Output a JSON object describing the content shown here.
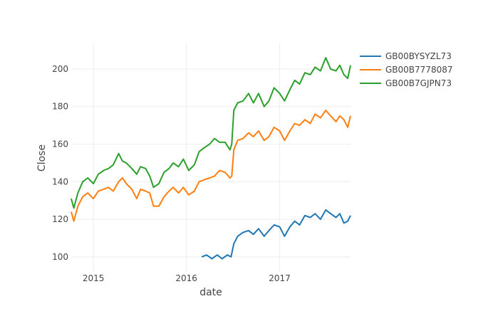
{
  "chart_data": {
    "type": "line",
    "title": "",
    "xlabel": "date",
    "ylabel": "Close",
    "xlim": [
      "2014-10-06",
      "2017-10-06"
    ],
    "ylim": [
      92,
      214
    ],
    "x_ticks": [
      {
        "label": "2015",
        "date": "2015-01-01"
      },
      {
        "label": "2016",
        "date": "2016-01-01"
      },
      {
        "label": "2017",
        "date": "2017-01-01"
      }
    ],
    "y_ticks": [
      100,
      120,
      140,
      160,
      180,
      200
    ],
    "grid": true,
    "legend_position": "top-right",
    "series": [
      {
        "name": "GB00BYSYZL73",
        "color": "#1f77b4",
        "points": [
          [
            "2016-03-01",
            100
          ],
          [
            "2016-03-20",
            101
          ],
          [
            "2016-04-10",
            99
          ],
          [
            "2016-05-01",
            101
          ],
          [
            "2016-05-20",
            99
          ],
          [
            "2016-06-10",
            101
          ],
          [
            "2016-06-24",
            100
          ],
          [
            "2016-07-05",
            107
          ],
          [
            "2016-07-20",
            111
          ],
          [
            "2016-08-10",
            113
          ],
          [
            "2016-09-01",
            114
          ],
          [
            "2016-09-20",
            112
          ],
          [
            "2016-10-10",
            115
          ],
          [
            "2016-11-01",
            111
          ],
          [
            "2016-11-20",
            114
          ],
          [
            "2016-12-10",
            117
          ],
          [
            "2017-01-01",
            116
          ],
          [
            "2017-01-20",
            111
          ],
          [
            "2017-02-10",
            116
          ],
          [
            "2017-03-01",
            119
          ],
          [
            "2017-03-20",
            117
          ],
          [
            "2017-04-10",
            122
          ],
          [
            "2017-05-01",
            121
          ],
          [
            "2017-05-20",
            123
          ],
          [
            "2017-06-10",
            120
          ],
          [
            "2017-07-01",
            125
          ],
          [
            "2017-07-20",
            123
          ],
          [
            "2017-08-10",
            121
          ],
          [
            "2017-08-25",
            123
          ],
          [
            "2017-09-10",
            118
          ],
          [
            "2017-09-25",
            119
          ],
          [
            "2017-10-06",
            122
          ]
        ]
      },
      {
        "name": "GB00B7778087",
        "color": "#ff7f0e",
        "points": [
          [
            "2014-10-06",
            124
          ],
          [
            "2014-10-16",
            119
          ],
          [
            "2014-11-01",
            127
          ],
          [
            "2014-11-20",
            132
          ],
          [
            "2014-12-10",
            134
          ],
          [
            "2015-01-01",
            131
          ],
          [
            "2015-01-20",
            135
          ],
          [
            "2015-02-10",
            136
          ],
          [
            "2015-03-01",
            137
          ],
          [
            "2015-03-20",
            135
          ],
          [
            "2015-04-10",
            140
          ],
          [
            "2015-04-25",
            142
          ],
          [
            "2015-05-10",
            139
          ],
          [
            "2015-06-01",
            136
          ],
          [
            "2015-06-20",
            131
          ],
          [
            "2015-07-05",
            136
          ],
          [
            "2015-07-25",
            135
          ],
          [
            "2015-08-10",
            134
          ],
          [
            "2015-08-25",
            127
          ],
          [
            "2015-09-15",
            127
          ],
          [
            "2015-10-05",
            132
          ],
          [
            "2015-10-25",
            135
          ],
          [
            "2015-11-10",
            137
          ],
          [
            "2015-12-01",
            134
          ],
          [
            "2015-12-20",
            137
          ],
          [
            "2016-01-10",
            133
          ],
          [
            "2016-02-01",
            135
          ],
          [
            "2016-02-20",
            140
          ],
          [
            "2016-03-10",
            141
          ],
          [
            "2016-04-01",
            142
          ],
          [
            "2016-04-20",
            143
          ],
          [
            "2016-05-10",
            146
          ],
          [
            "2016-06-01",
            145
          ],
          [
            "2016-06-20",
            142
          ],
          [
            "2016-06-27",
            143
          ],
          [
            "2016-07-05",
            157
          ],
          [
            "2016-07-20",
            162
          ],
          [
            "2016-08-10",
            163
          ],
          [
            "2016-09-01",
            166
          ],
          [
            "2016-09-20",
            164
          ],
          [
            "2016-10-10",
            167
          ],
          [
            "2016-11-01",
            162
          ],
          [
            "2016-11-20",
            164
          ],
          [
            "2016-12-10",
            169
          ],
          [
            "2017-01-01",
            167
          ],
          [
            "2017-01-20",
            162
          ],
          [
            "2017-02-10",
            167
          ],
          [
            "2017-03-01",
            171
          ],
          [
            "2017-03-20",
            170
          ],
          [
            "2017-04-10",
            173
          ],
          [
            "2017-05-01",
            171
          ],
          [
            "2017-05-20",
            176
          ],
          [
            "2017-06-10",
            174
          ],
          [
            "2017-07-01",
            178
          ],
          [
            "2017-07-20",
            175
          ],
          [
            "2017-08-10",
            172
          ],
          [
            "2017-08-25",
            175
          ],
          [
            "2017-09-10",
            173
          ],
          [
            "2017-09-25",
            169
          ],
          [
            "2017-10-06",
            175
          ]
        ]
      },
      {
        "name": "GB00B7GJPN73",
        "color": "#2ca02c",
        "points": [
          [
            "2014-10-06",
            131
          ],
          [
            "2014-10-16",
            126
          ],
          [
            "2014-11-01",
            134
          ],
          [
            "2014-11-20",
            140
          ],
          [
            "2014-12-10",
            142
          ],
          [
            "2015-01-01",
            139
          ],
          [
            "2015-01-20",
            144
          ],
          [
            "2015-02-10",
            146
          ],
          [
            "2015-03-01",
            147
          ],
          [
            "2015-03-20",
            149
          ],
          [
            "2015-04-10",
            155
          ],
          [
            "2015-04-25",
            151
          ],
          [
            "2015-05-10",
            150
          ],
          [
            "2015-06-01",
            147
          ],
          [
            "2015-06-20",
            144
          ],
          [
            "2015-07-05",
            148
          ],
          [
            "2015-07-25",
            147
          ],
          [
            "2015-08-10",
            143
          ],
          [
            "2015-08-25",
            137
          ],
          [
            "2015-09-15",
            139
          ],
          [
            "2015-10-05",
            145
          ],
          [
            "2015-10-25",
            147
          ],
          [
            "2015-11-10",
            150
          ],
          [
            "2015-12-01",
            148
          ],
          [
            "2015-12-20",
            152
          ],
          [
            "2016-01-10",
            146
          ],
          [
            "2016-02-01",
            149
          ],
          [
            "2016-02-20",
            156
          ],
          [
            "2016-03-10",
            158
          ],
          [
            "2016-04-01",
            160
          ],
          [
            "2016-04-20",
            163
          ],
          [
            "2016-05-10",
            161
          ],
          [
            "2016-06-01",
            161
          ],
          [
            "2016-06-20",
            157
          ],
          [
            "2016-06-27",
            160
          ],
          [
            "2016-07-05",
            178
          ],
          [
            "2016-07-20",
            182
          ],
          [
            "2016-08-10",
            183
          ],
          [
            "2016-09-01",
            187
          ],
          [
            "2016-09-20",
            182
          ],
          [
            "2016-10-10",
            187
          ],
          [
            "2016-11-01",
            180
          ],
          [
            "2016-11-20",
            183
          ],
          [
            "2016-12-10",
            190
          ],
          [
            "2017-01-01",
            187
          ],
          [
            "2017-01-20",
            183
          ],
          [
            "2017-02-10",
            189
          ],
          [
            "2017-03-01",
            194
          ],
          [
            "2017-03-20",
            192
          ],
          [
            "2017-04-10",
            198
          ],
          [
            "2017-05-01",
            197
          ],
          [
            "2017-05-20",
            201
          ],
          [
            "2017-06-10",
            199
          ],
          [
            "2017-07-01",
            206
          ],
          [
            "2017-07-20",
            200
          ],
          [
            "2017-08-10",
            199
          ],
          [
            "2017-08-25",
            202
          ],
          [
            "2017-09-10",
            197
          ],
          [
            "2017-09-25",
            195
          ],
          [
            "2017-10-06",
            202
          ]
        ]
      }
    ]
  }
}
